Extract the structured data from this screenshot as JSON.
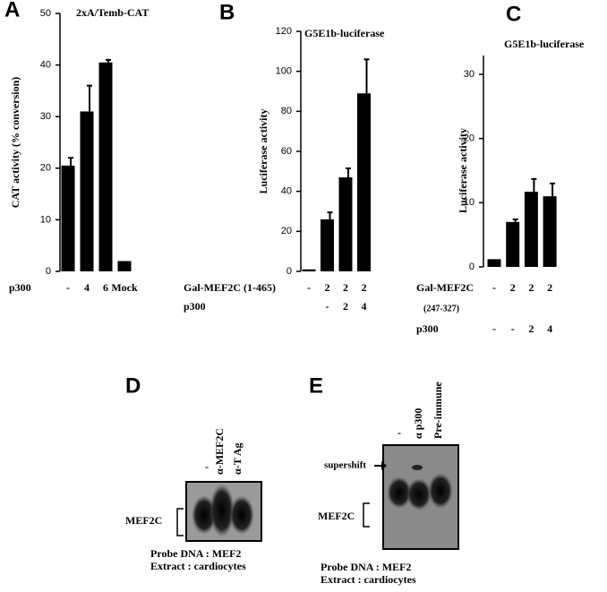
{
  "chart_data": [
    {
      "type": "bar",
      "panel": "A",
      "title": "2xA/Temb-CAT",
      "y_label": "CAT activity (% conversion)",
      "color": "#000000",
      "category_rows": [
        {
          "name": "p300",
          "labels": [
            "-",
            "4",
            "6",
            "Mock"
          ]
        }
      ],
      "values": [
        20.5,
        31,
        40.5,
        2
      ],
      "errors": [
        1.5,
        5,
        0.5,
        null
      ],
      "ylim": [
        0,
        50
      ],
      "yticks": [
        0,
        10,
        20,
        30,
        40,
        50
      ]
    },
    {
      "type": "bar",
      "panel": "B",
      "title": "G5E1b-luciferase",
      "y_label": "Luciferase activity",
      "color": "#000000",
      "category_rows": [
        {
          "name": "Gal-MEF2C (1-465)",
          "labels": [
            "-",
            "2",
            "2",
            "2"
          ]
        },
        {
          "name": "p300",
          "labels": [
            null,
            "-",
            "2",
            "4"
          ]
        }
      ],
      "values": [
        1,
        26,
        47,
        89
      ],
      "errors": [
        null,
        3.5,
        4.5,
        17
      ],
      "ylim": [
        0,
        120
      ],
      "yticks": [
        0,
        20,
        40,
        60,
        80,
        100,
        120
      ]
    },
    {
      "type": "bar",
      "panel": "C",
      "title": "G5E1b-luciferase",
      "y_label": "Luciferase activity",
      "color": "#000000",
      "category_rows": [
        {
          "name": "Gal-MEF2C",
          "sub": "(247-327)",
          "labels": [
            "-",
            "2",
            "2",
            "2"
          ]
        },
        {
          "name": "p300",
          "labels": [
            "-",
            "-",
            "2",
            "4"
          ]
        }
      ],
      "values": [
        1.2,
        7,
        11.7,
        11
      ],
      "errors": [
        null,
        0.4,
        2,
        2
      ],
      "ylim": [
        0,
        30
      ],
      "yticks": [
        0,
        10,
        20,
        30
      ]
    }
  ],
  "gels": [
    {
      "panel": "D",
      "lanes": [
        "-",
        "α-MEF2C",
        "α-T Ag"
      ],
      "band": "MEF2C",
      "caption": [
        "Probe DNA : MEF2",
        "Extract : cardiocytes"
      ]
    },
    {
      "panel": "E",
      "lanes": [
        "-",
        "α p300",
        "Pre-immune"
      ],
      "arrow": "supershift",
      "band": "MEF2C",
      "caption": [
        "Probe DNA : MEF2",
        "Extract : cardiocytes"
      ]
    }
  ]
}
